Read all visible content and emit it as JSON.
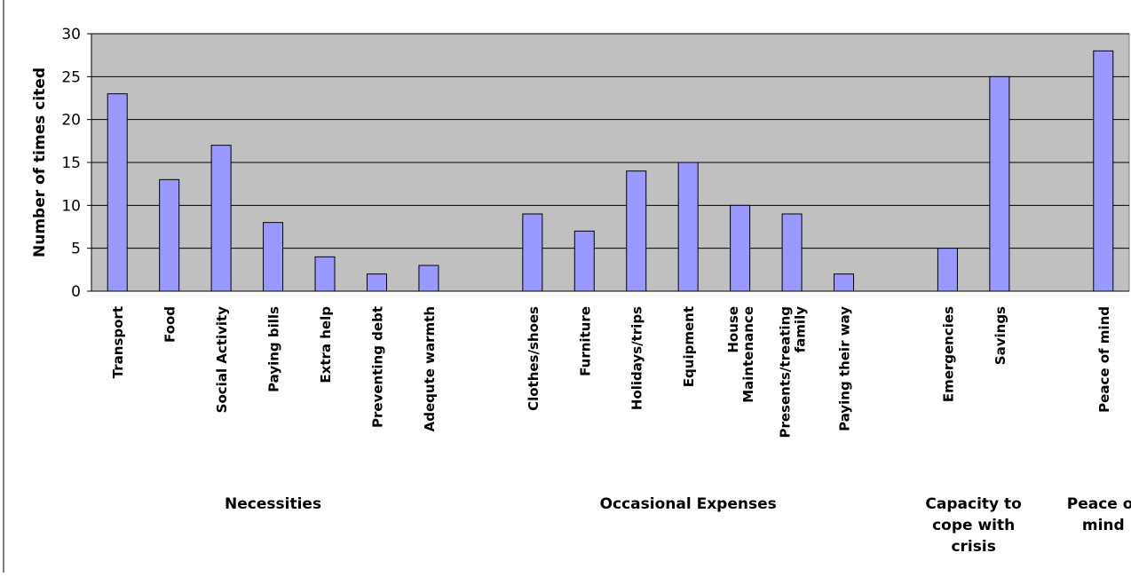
{
  "chart_data": {
    "type": "bar",
    "title": "",
    "xlabel": "",
    "ylabel": "Number of times cited",
    "ylim": [
      0,
      30
    ],
    "yticks": [
      0,
      5,
      10,
      15,
      20,
      25,
      30
    ],
    "grid": true,
    "legend": "none",
    "colors": {
      "bar": "#9999ff",
      "plot_bg": "#c0c0c0",
      "bar_edge": "#000000"
    },
    "slots": 20,
    "categories": [
      "Transport",
      "Food",
      "Social Activity",
      "Paying bills",
      "Extra help",
      "Preventing debt",
      "Adequte warmth",
      "Clothes/shoes",
      "Furniture",
      "Holidays/trips",
      "Equipment",
      "House Maintenance",
      "Presents/treating family",
      "Paying their way",
      "Emergencies",
      "Savings",
      "Peace of mind"
    ],
    "category_lines": [
      [
        "Transport"
      ],
      [
        "Food"
      ],
      [
        "Social Activity"
      ],
      [
        "Paying bills"
      ],
      [
        "Extra help"
      ],
      [
        "Preventing debt"
      ],
      [
        "Adequte warmth"
      ],
      [
        "Clothes/shoes"
      ],
      [
        "Furniture"
      ],
      [
        "Holidays/trips"
      ],
      [
        "Equipment"
      ],
      [
        "House",
        "Maintenance"
      ],
      [
        "Presents/treating",
        "family"
      ],
      [
        "Paying their way"
      ],
      [
        "Emergencies"
      ],
      [
        "Savings"
      ],
      [
        "Peace of mind"
      ]
    ],
    "values": [
      23,
      13,
      17,
      8,
      4,
      2,
      3,
      9,
      7,
      14,
      15,
      10,
      9,
      2,
      5,
      25,
      28
    ],
    "groups": [
      {
        "label_lines": [
          "Necessities"
        ],
        "categories": [
          "Transport",
          "Food",
          "Social Activity",
          "Paying bills",
          "Extra help",
          "Preventing debt",
          "Adequte warmth"
        ]
      },
      {
        "label_lines": [
          "Occasional Expenses"
        ],
        "categories": [
          "Clothes/shoes",
          "Furniture",
          "Holidays/trips",
          "Equipment",
          "House Maintenance",
          "Presents/treating family",
          "Paying their way"
        ]
      },
      {
        "label_lines": [
          "Capacity to",
          "cope with",
          "crisis"
        ],
        "categories": [
          "Emergencies",
          "Savings"
        ]
      },
      {
        "label_lines": [
          "Peace of",
          "mind"
        ],
        "categories": [
          "Peace of mind"
        ]
      }
    ]
  }
}
